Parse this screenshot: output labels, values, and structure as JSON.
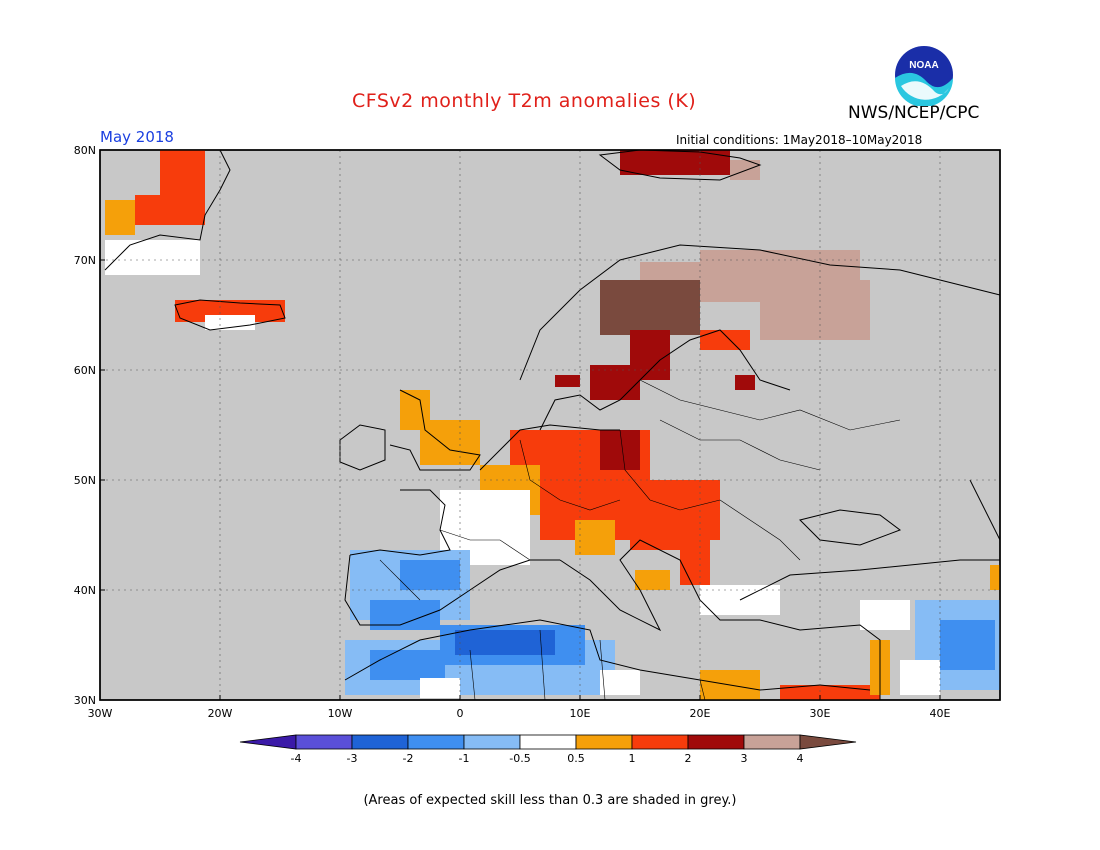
{
  "header": {
    "title": "CFSv2 monthly T2m anomalies (K)",
    "org": "NWS/NCEP/CPC",
    "month": "May 2018",
    "initial_conditions": "Initial conditions: 1May2018–10May2018"
  },
  "logo": {
    "text": "NOAA"
  },
  "axes": {
    "lat_labels": [
      "80N",
      "70N",
      "60N",
      "50N",
      "40N",
      "30N"
    ],
    "lon_labels": [
      "30W",
      "20W",
      "10W",
      "0",
      "10E",
      "20E",
      "30E",
      "40E"
    ],
    "lat_range": [
      30,
      80
    ],
    "lon_range": [
      -30,
      45
    ]
  },
  "colorbar": {
    "labels": [
      "-4",
      "-3",
      "-2",
      "-1",
      "-0.5",
      "0.5",
      "1",
      "2",
      "3",
      "4"
    ],
    "colors": [
      "#3b1aa8",
      "#5a4fd8",
      "#1f63d6",
      "#3f8ff0",
      "#86bcf5",
      "#ffffff",
      "#f5a00a",
      "#f73c0c",
      "#a00a0a",
      "#c8a298",
      "#7a4a3e"
    ]
  },
  "map_colors": {
    "ocean_grey": "#c8c8c8",
    "land_outline": "#000000"
  },
  "footnote": "(Areas of expected skill less than 0.3 are shaded in grey.)"
}
